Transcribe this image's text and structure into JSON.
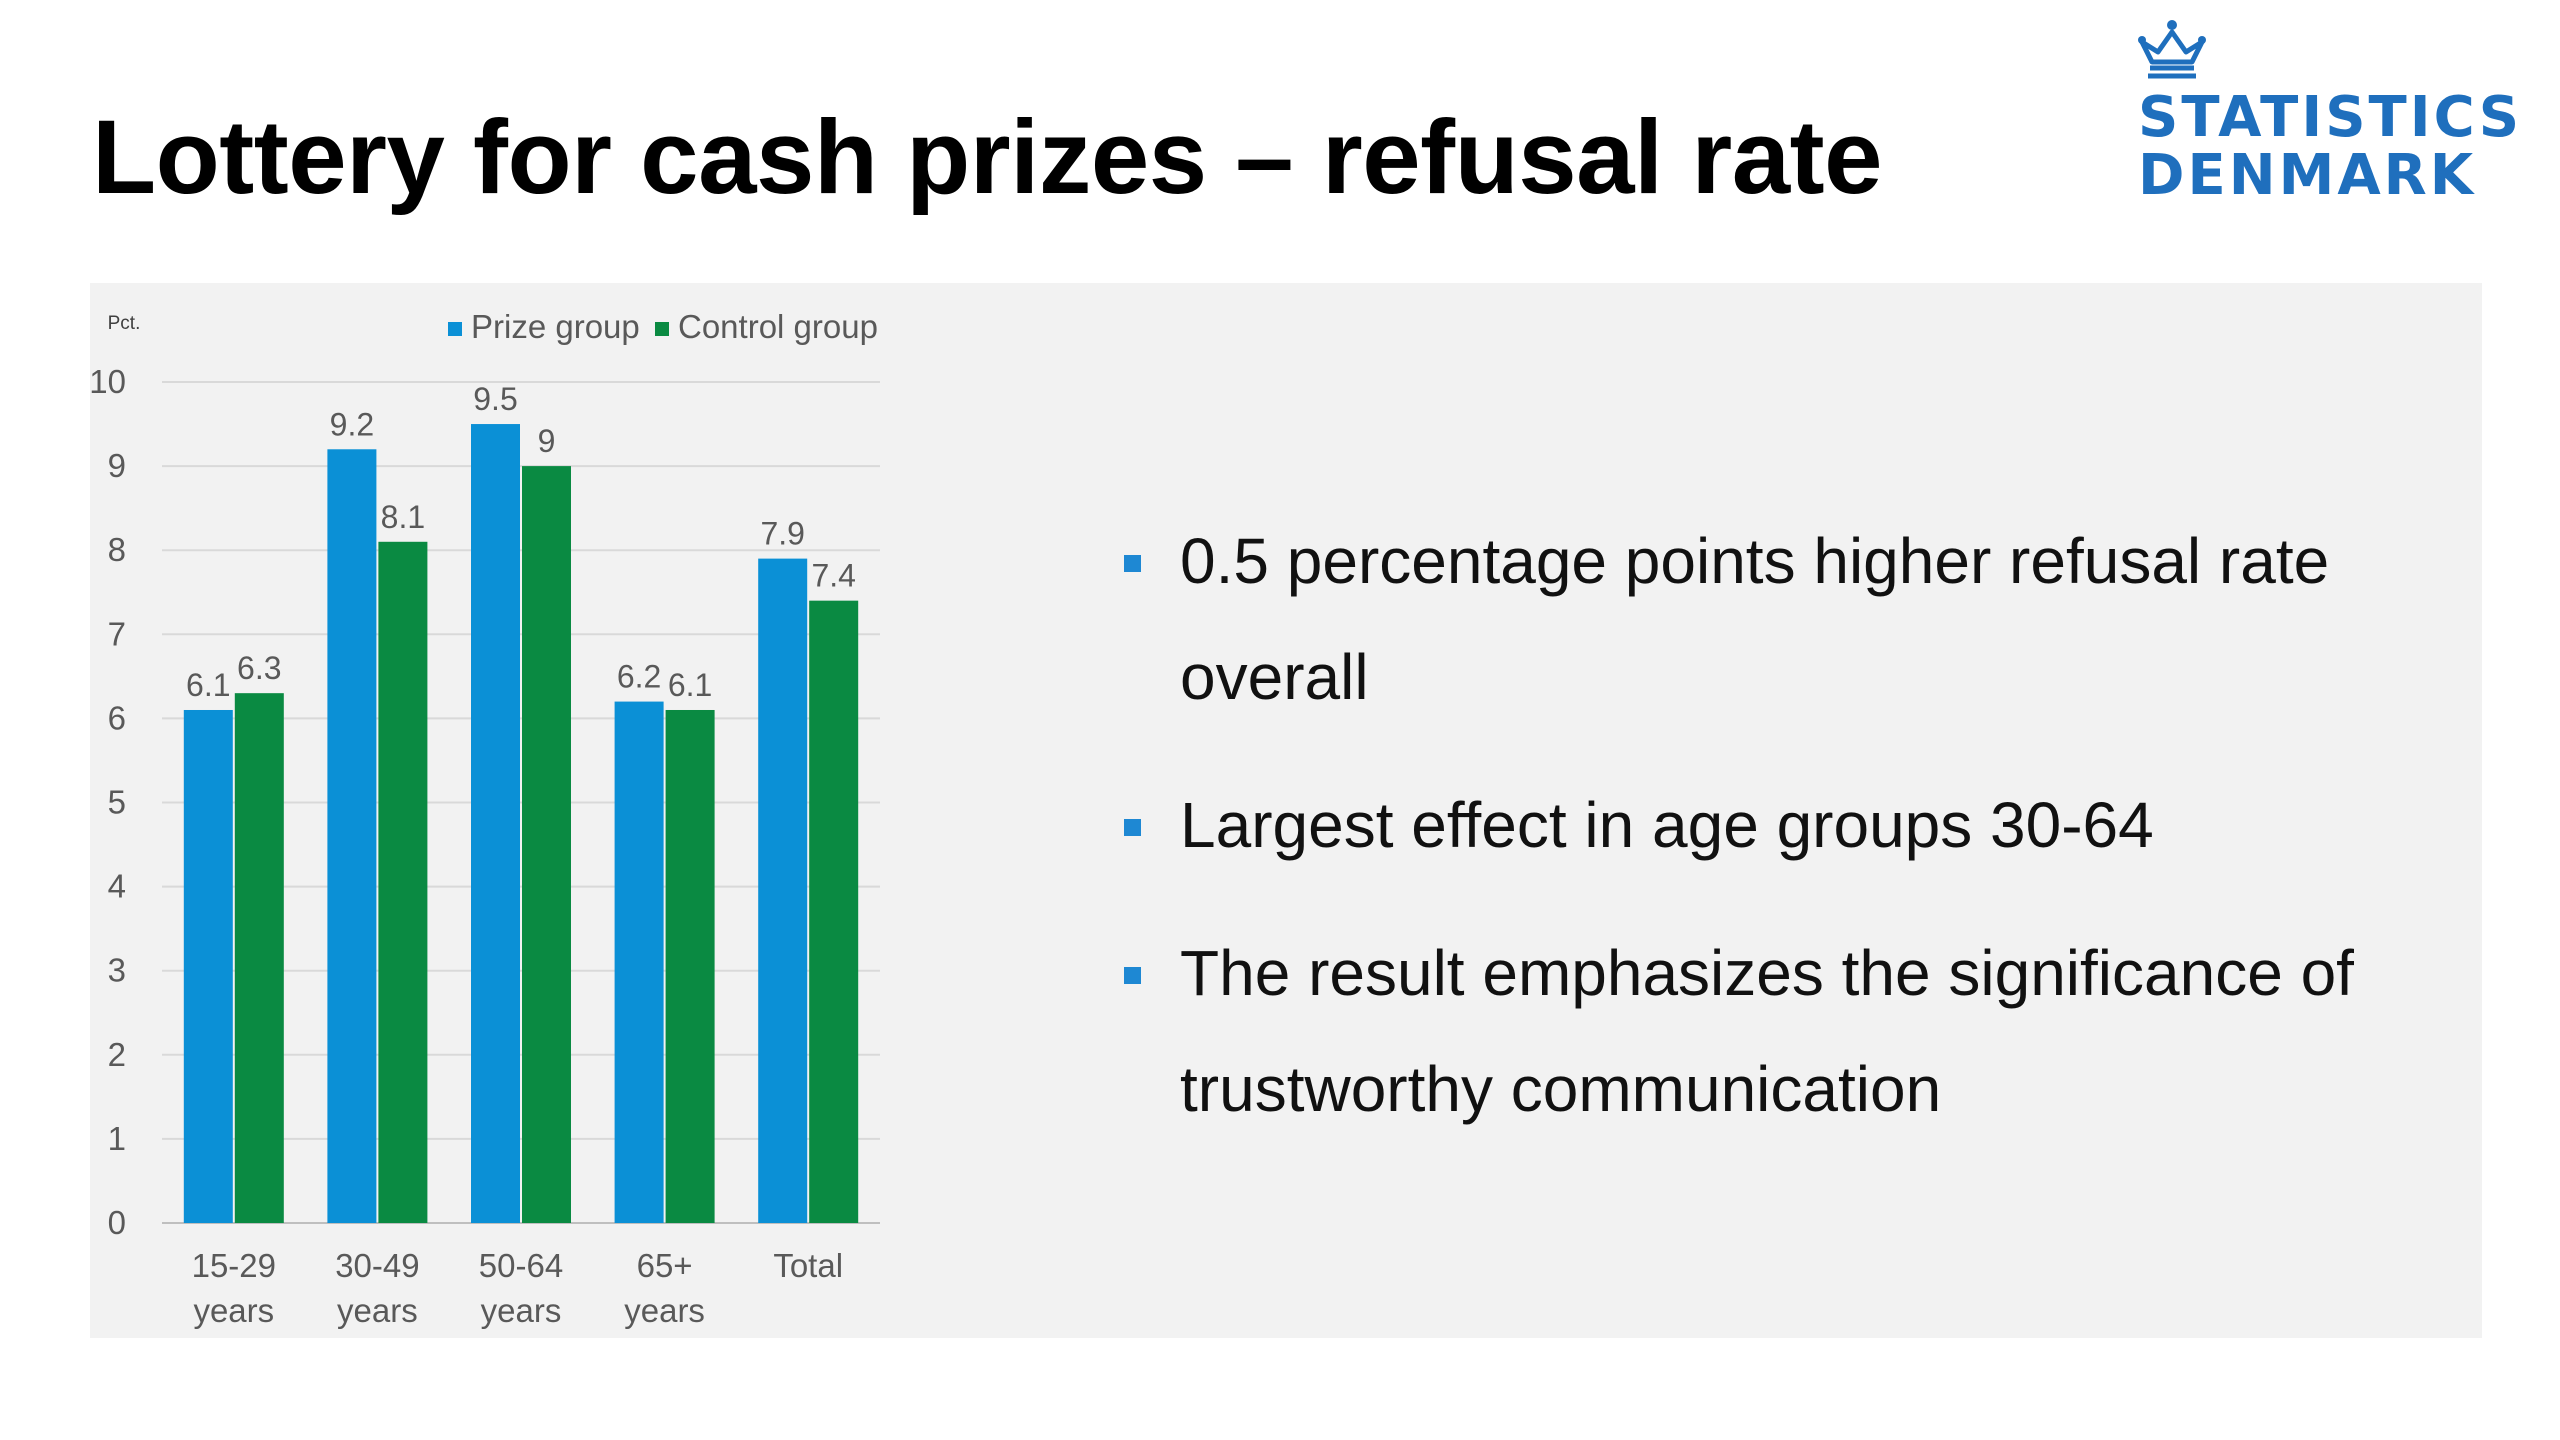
{
  "title": "Lottery for cash prizes – refusal rate",
  "logo": {
    "line1": "STATISTICS",
    "line2": "DENMARK",
    "icon": "crown-icon",
    "color": "#1f6fbd"
  },
  "bullets": [
    "0.5 percentage points higher refusal rate overall",
    "Largest effect in age groups 30-64",
    "The result emphasizes the significance of trustworthy communication"
  ],
  "chart_data": {
    "type": "bar",
    "ylabel": "Pct.",
    "ylim": [
      0,
      10
    ],
    "yticks": [
      0,
      1,
      2,
      3,
      4,
      5,
      6,
      7,
      8,
      9,
      10
    ],
    "grid": true,
    "legend": "top",
    "categories": [
      [
        "15-29",
        "years"
      ],
      [
        "30-49",
        "years"
      ],
      [
        "50-64",
        "years"
      ],
      [
        "65+",
        "years"
      ],
      [
        "Total"
      ]
    ],
    "series": [
      {
        "name": "Prize group",
        "color": "#0b90d6",
        "values": [
          6.1,
          9.2,
          9.5,
          6.2,
          7.9
        ]
      },
      {
        "name": "Control group",
        "color": "#0a8a42",
        "values": [
          6.3,
          8.1,
          9,
          6.1,
          7.4
        ]
      }
    ]
  }
}
